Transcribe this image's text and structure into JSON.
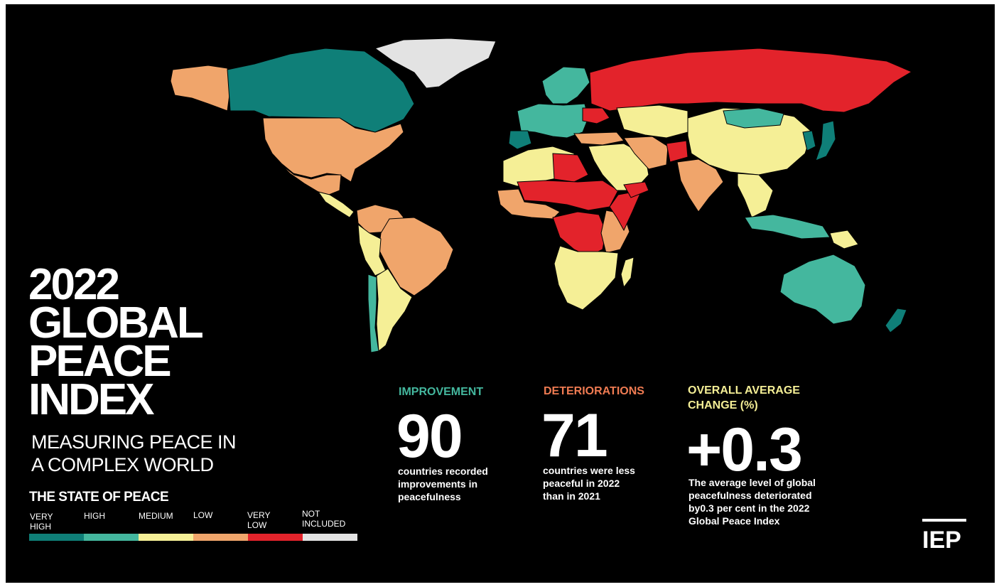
{
  "title_lines": [
    "2022",
    "GLOBAL",
    "PEACE",
    "INDEX"
  ],
  "subtitle_lines": [
    "MEASURING PEACE IN",
    "A COMPLEX WORLD"
  ],
  "legend": {
    "heading": "THE STATE OF PEACE",
    "items": [
      {
        "label_lines": [
          "VERY",
          "HIGH"
        ],
        "color": "#0f7f78"
      },
      {
        "label_lines": [
          "HIGH"
        ],
        "color": "#44b79e"
      },
      {
        "label_lines": [
          "MEDIUM"
        ],
        "color": "#f5ef96"
      },
      {
        "label_lines": [
          "LOW"
        ],
        "color": "#f0a56b"
      },
      {
        "label_lines": [
          "VERY",
          "LOW"
        ],
        "color": "#e3232b"
      },
      {
        "label_lines": [
          "NOT",
          "INCLUDED"
        ],
        "color": "#e3e3e3"
      }
    ]
  },
  "stats": {
    "improvement": {
      "heading": "IMPROVEMENT",
      "value": "90",
      "desc_lines": [
        "countries recorded",
        "improvements in",
        "peacefulness"
      ],
      "color": "#44b79e"
    },
    "deteriorations": {
      "heading": "DETERIORATIONS",
      "value": "71",
      "desc_lines": [
        "countries were less",
        "peaceful in 2022",
        "than in 2021"
      ],
      "color": "#ef7b52"
    },
    "overall": {
      "heading_lines": [
        "OVERALL AVERAGE",
        "CHANGE (%)"
      ],
      "value": "+0.3",
      "desc_lines": [
        "The average level of global",
        "peacefulness deteriorated",
        "by0.3 per cent in the 2022",
        "Global Peace Index"
      ],
      "color": "#f5ef96"
    }
  },
  "logo_text": "IEP",
  "map_regions": [
    {
      "name": "alaska",
      "color": "#f0a56b"
    },
    {
      "name": "canada",
      "color": "#0f7f78"
    },
    {
      "name": "greenland",
      "color": "#e3e3e3"
    },
    {
      "name": "usa",
      "color": "#f0a56b"
    },
    {
      "name": "mexico",
      "color": "#f0a56b"
    },
    {
      "name": "central-america",
      "color": "#f5ef96"
    },
    {
      "name": "south-america-north",
      "color": "#f0a56b"
    },
    {
      "name": "brazil",
      "color": "#f0a56b"
    },
    {
      "name": "andes",
      "color": "#f5ef96"
    },
    {
      "name": "southern-cone",
      "color": "#f5ef96"
    },
    {
      "name": "chile",
      "color": "#44b79e"
    },
    {
      "name": "scandinavia",
      "color": "#44b79e"
    },
    {
      "name": "europe",
      "color": "#44b79e"
    },
    {
      "name": "iberia",
      "color": "#0f7f78"
    },
    {
      "name": "russia",
      "color": "#e3232b"
    },
    {
      "name": "ukraine",
      "color": "#e3232b"
    },
    {
      "name": "turkey",
      "color": "#f0a56b"
    },
    {
      "name": "north-africa",
      "color": "#f5ef96"
    },
    {
      "name": "libya",
      "color": "#e3232b"
    },
    {
      "name": "sahel",
      "color": "#e3232b"
    },
    {
      "name": "west-africa",
      "color": "#f0a56b"
    },
    {
      "name": "central-africa",
      "color": "#e3232b"
    },
    {
      "name": "east-africa",
      "color": "#f0a56b"
    },
    {
      "name": "somalia",
      "color": "#e3232b"
    },
    {
      "name": "southern-africa",
      "color": "#f5ef96"
    },
    {
      "name": "madagascar",
      "color": "#f5ef96"
    },
    {
      "name": "middle-east",
      "color": "#f5ef96"
    },
    {
      "name": "yemen",
      "color": "#e3232b"
    },
    {
      "name": "iran",
      "color": "#f0a56b"
    },
    {
      "name": "central-asia",
      "color": "#f5ef96"
    },
    {
      "name": "afghanistan",
      "color": "#e3232b"
    },
    {
      "name": "india",
      "color": "#f0a56b"
    },
    {
      "name": "china",
      "color": "#f5ef96"
    },
    {
      "name": "mongolia",
      "color": "#44b79e"
    },
    {
      "name": "southeast-asia",
      "color": "#f5ef96"
    },
    {
      "name": "korea",
      "color": "#0f7f78"
    },
    {
      "name": "japan",
      "color": "#0f7f78"
    },
    {
      "name": "indonesia",
      "color": "#44b79e"
    },
    {
      "name": "papua",
      "color": "#f5ef96"
    },
    {
      "name": "australia",
      "color": "#44b79e"
    },
    {
      "name": "new-zealand",
      "color": "#0f7f78"
    }
  ]
}
